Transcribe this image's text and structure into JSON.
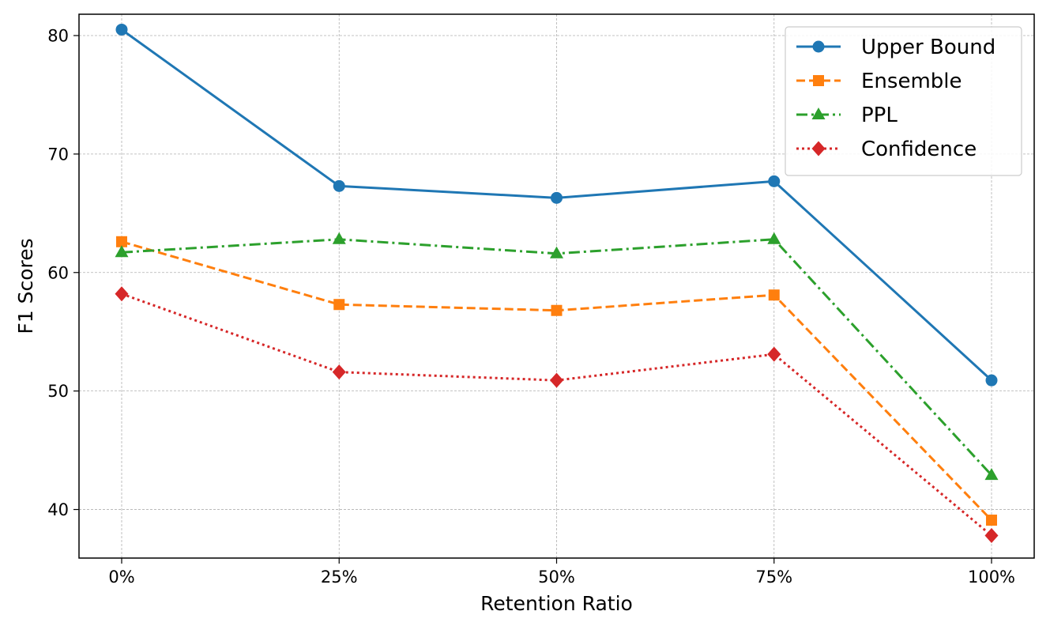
{
  "chart_data": {
    "type": "line",
    "title": "",
    "xlabel": "Retention Ratio",
    "ylabel": "F1 Scores",
    "categories": [
      "0%",
      "25%",
      "50%",
      "75%",
      "100%"
    ],
    "ylim": [
      35.9,
      81.8
    ],
    "yticks": [
      40,
      50,
      60,
      70,
      80
    ],
    "grid": true,
    "legend_position": "top-right",
    "series": [
      {
        "name": "Upper Bound",
        "values": [
          80.5,
          67.3,
          66.3,
          67.7,
          50.9
        ],
        "color": "#1f77b4",
        "marker": "circle",
        "linestyle": "solid"
      },
      {
        "name": "Ensemble",
        "values": [
          62.6,
          57.3,
          56.8,
          58.1,
          39.1
        ],
        "color": "#ff7f0e",
        "marker": "square",
        "linestyle": "dashed"
      },
      {
        "name": "PPL",
        "values": [
          61.7,
          62.8,
          61.6,
          62.8,
          42.9
        ],
        "color": "#2ca02c",
        "marker": "triangle",
        "linestyle": "dashdot"
      },
      {
        "name": "Confidence",
        "values": [
          58.2,
          51.6,
          50.9,
          53.1,
          37.8
        ],
        "color": "#d62728",
        "marker": "diamond",
        "linestyle": "dotted"
      }
    ]
  }
}
